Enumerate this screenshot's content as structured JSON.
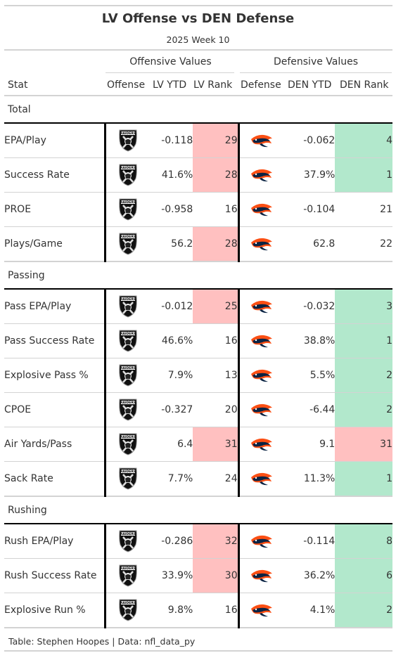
{
  "title": "LV Offense vs DEN Defense",
  "subtitle": "2025 Week 10",
  "spanners": {
    "offense": "Offensive Values",
    "defense": "Defensive Values"
  },
  "columns": {
    "stat": "Stat",
    "offense": "Offense",
    "lv_ytd": "LV YTD",
    "lv_rank": "LV Rank",
    "defense": "Defense",
    "den_ytd": "DEN YTD",
    "den_rank": "DEN Rank"
  },
  "logos": {
    "offense_icon": "raiders-shield-logo",
    "defense_icon": "broncos-horse-logo",
    "raiders_text": "RAIDERS"
  },
  "colors": {
    "bad_rank": "#ffc0c0",
    "good_rank": "#b2e8cc"
  },
  "groups": [
    {
      "label": "Total",
      "rows": [
        {
          "stat": "EPA/Play",
          "lv_ytd": "-0.118",
          "lv_rank": "29",
          "lv_hl": "red",
          "den_ytd": "-0.062",
          "den_rank": "4",
          "den_hl": "green"
        },
        {
          "stat": "Success Rate",
          "lv_ytd": "41.6%",
          "lv_rank": "28",
          "lv_hl": "red",
          "den_ytd": "37.9%",
          "den_rank": "1",
          "den_hl": "green"
        },
        {
          "stat": "PROE",
          "lv_ytd": "-0.958",
          "lv_rank": "16",
          "lv_hl": "",
          "den_ytd": "-0.104",
          "den_rank": "21",
          "den_hl": ""
        },
        {
          "stat": "Plays/Game",
          "lv_ytd": "56.2",
          "lv_rank": "28",
          "lv_hl": "red",
          "den_ytd": "62.8",
          "den_rank": "22",
          "den_hl": ""
        }
      ]
    },
    {
      "label": "Passing",
      "rows": [
        {
          "stat": "Pass EPA/Play",
          "lv_ytd": "-0.012",
          "lv_rank": "25",
          "lv_hl": "red",
          "den_ytd": "-0.032",
          "den_rank": "3",
          "den_hl": "green"
        },
        {
          "stat": "Pass Success Rate",
          "lv_ytd": "46.6%",
          "lv_rank": "16",
          "lv_hl": "",
          "den_ytd": "38.8%",
          "den_rank": "1",
          "den_hl": "green"
        },
        {
          "stat": "Explosive Pass %",
          "lv_ytd": "7.9%",
          "lv_rank": "13",
          "lv_hl": "",
          "den_ytd": "5.5%",
          "den_rank": "2",
          "den_hl": "green"
        },
        {
          "stat": "CPOE",
          "lv_ytd": "-0.327",
          "lv_rank": "20",
          "lv_hl": "",
          "den_ytd": "-6.44",
          "den_rank": "2",
          "den_hl": "green"
        },
        {
          "stat": "Air Yards/Pass",
          "lv_ytd": "6.4",
          "lv_rank": "31",
          "lv_hl": "red",
          "den_ytd": "9.1",
          "den_rank": "31",
          "den_hl": "red"
        },
        {
          "stat": "Sack Rate",
          "lv_ytd": "7.7%",
          "lv_rank": "24",
          "lv_hl": "",
          "den_ytd": "11.3%",
          "den_rank": "1",
          "den_hl": "green"
        }
      ]
    },
    {
      "label": "Rushing",
      "rows": [
        {
          "stat": "Rush EPA/Play",
          "lv_ytd": "-0.286",
          "lv_rank": "32",
          "lv_hl": "red",
          "den_ytd": "-0.114",
          "den_rank": "8",
          "den_hl": "green"
        },
        {
          "stat": "Rush Success Rate",
          "lv_ytd": "33.9%",
          "lv_rank": "30",
          "lv_hl": "red",
          "den_ytd": "36.2%",
          "den_rank": "6",
          "den_hl": "green"
        },
        {
          "stat": "Explosive Run %",
          "lv_ytd": "9.8%",
          "lv_rank": "16",
          "lv_hl": "",
          "den_ytd": "4.1%",
          "den_rank": "2",
          "den_hl": "green"
        }
      ]
    }
  ],
  "footer": "Table: Stephen Hoopes | Data: nfl_data_py"
}
